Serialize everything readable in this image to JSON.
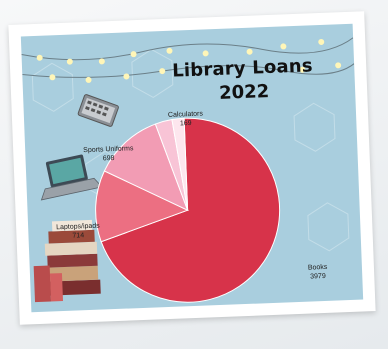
{
  "chart_data": {
    "type": "pie",
    "title_line1": "Library Loans",
    "title_line2": "2022",
    "slices": [
      {
        "label": "Books",
        "value": 3979,
        "color": "#d7334a"
      },
      {
        "label": "Laptops/ipads",
        "value": 714,
        "color": "#ec6f82"
      },
      {
        "label": "Sports Uniforms",
        "value": 698,
        "color": "#f29cb4"
      },
      {
        "label": "Calculators",
        "value": 169,
        "color": "#f8c4d6"
      },
      {
        "label": "",
        "value": 120,
        "color": "#fde6ee"
      }
    ]
  },
  "labels": {
    "books": {
      "name": "Books",
      "value": "3979"
    },
    "laptops": {
      "name": "Laptops/ipads",
      "value": "714"
    },
    "uniforms": {
      "name": "Sports Uniforms",
      "value": "698"
    },
    "calculators": {
      "name": "Calculators",
      "value": "169"
    }
  },
  "icons": [
    "calculator-icon",
    "laptop-icon",
    "book-stack-icon",
    "string-lights"
  ]
}
